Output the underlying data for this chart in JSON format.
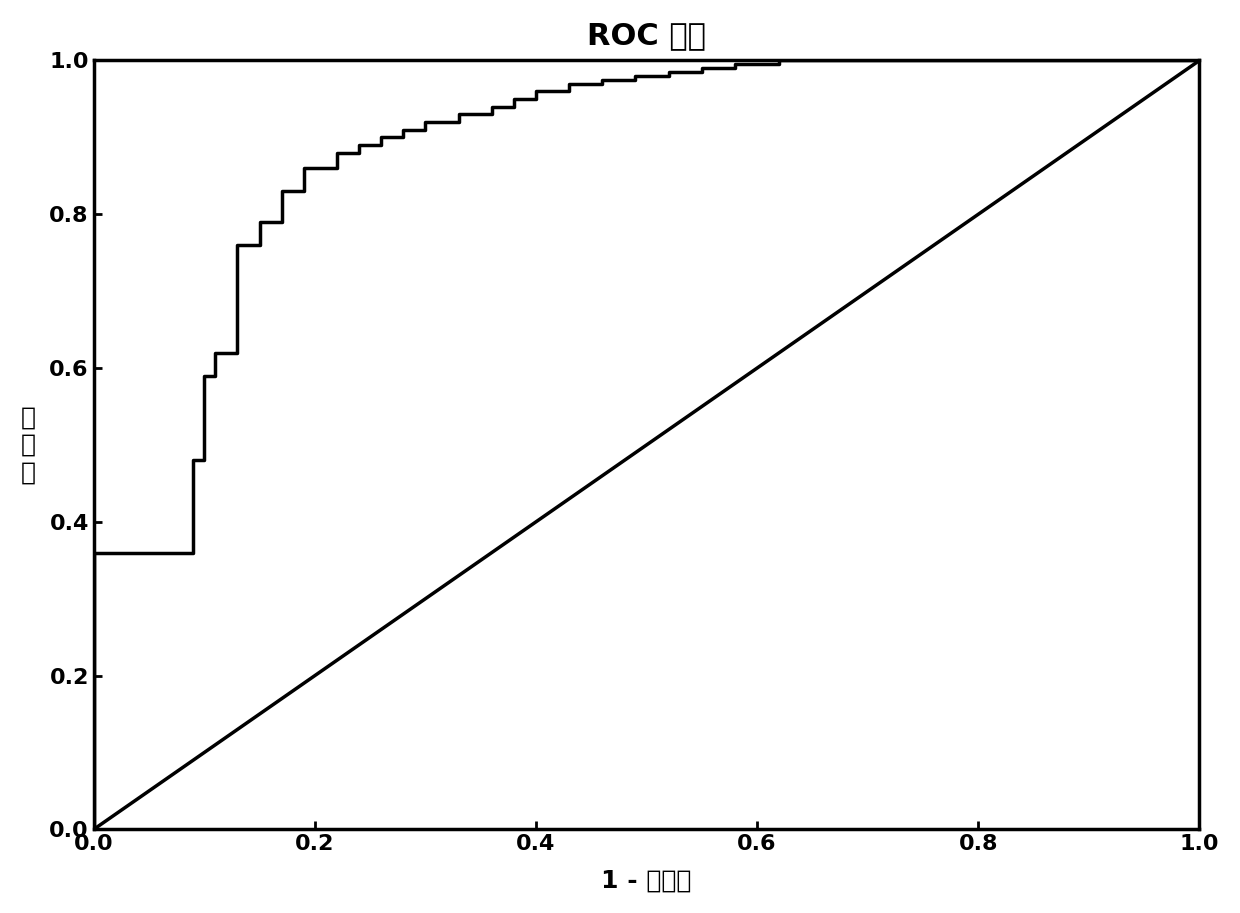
{
  "title": "ROC 曲线",
  "xlabel": "1 - 特异性",
  "ylabel": "敏\n感\n度",
  "xlim": [
    0.0,
    1.0
  ],
  "ylim": [
    0.0,
    1.0
  ],
  "xticks": [
    0.0,
    0.2,
    0.4,
    0.6,
    0.8,
    1.0
  ],
  "yticks": [
    0.0,
    0.2,
    0.4,
    0.6,
    0.8,
    1.0
  ],
  "background_color": "#ffffff",
  "line_color": "#000000",
  "title_fontsize": 22,
  "axis_label_fontsize": 18,
  "tick_fontsize": 16,
  "fpr": [
    0.0,
    0.0,
    0.09,
    0.09,
    0.1,
    0.1,
    0.11,
    0.11,
    0.13,
    0.13,
    0.15,
    0.15,
    0.17,
    0.17,
    0.19,
    0.19,
    0.22,
    0.22,
    0.24,
    0.24,
    0.26,
    0.26,
    0.28,
    0.28,
    0.3,
    0.3,
    0.33,
    0.33,
    0.36,
    0.36,
    0.38,
    0.38,
    0.4,
    0.4,
    0.43,
    0.43,
    0.46,
    0.46,
    0.49,
    0.49,
    0.52,
    0.52,
    0.55,
    0.55,
    0.58,
    0.58,
    0.62,
    0.62,
    1.0
  ],
  "tpr": [
    0.0,
    0.36,
    0.36,
    0.48,
    0.48,
    0.59,
    0.59,
    0.62,
    0.62,
    0.76,
    0.76,
    0.79,
    0.79,
    0.83,
    0.83,
    0.86,
    0.86,
    0.88,
    0.88,
    0.89,
    0.89,
    0.9,
    0.9,
    0.91,
    0.91,
    0.92,
    0.92,
    0.93,
    0.93,
    0.94,
    0.94,
    0.95,
    0.95,
    0.96,
    0.96,
    0.97,
    0.97,
    0.975,
    0.975,
    0.98,
    0.98,
    0.985,
    0.985,
    0.99,
    0.99,
    0.995,
    0.995,
    1.0,
    1.0
  ]
}
